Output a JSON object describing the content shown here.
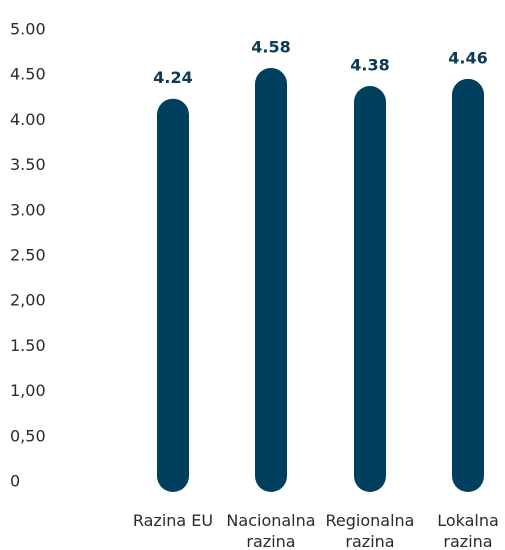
{
  "chart_data": {
    "type": "bar",
    "categories": [
      "Razina EU",
      "Nacionalna razina",
      "Regionalna razina",
      "Lokalna razina"
    ],
    "values": [
      4.24,
      4.58,
      4.38,
      4.46
    ],
    "color": "#00405e",
    "ylim": [
      0,
      5
    ],
    "yticks": [
      0,
      {
        "value": 0.5,
        "label": "0,50"
      },
      {
        "value": 1,
        "label": "1,00"
      },
      {
        "value": 1.5,
        "label": "1.50"
      },
      {
        "value": 2,
        "label": "2,00"
      },
      {
        "value": 2.5,
        "label": "2.50"
      },
      {
        "value": 3,
        "label": "3.00"
      },
      {
        "value": 3.5,
        "label": "3.50"
      },
      {
        "value": 4,
        "label": "4.00"
      },
      {
        "value": 4.5,
        "label": "4.50"
      },
      {
        "value": 5,
        "label": "5.00"
      }
    ],
    "grid": false
  }
}
